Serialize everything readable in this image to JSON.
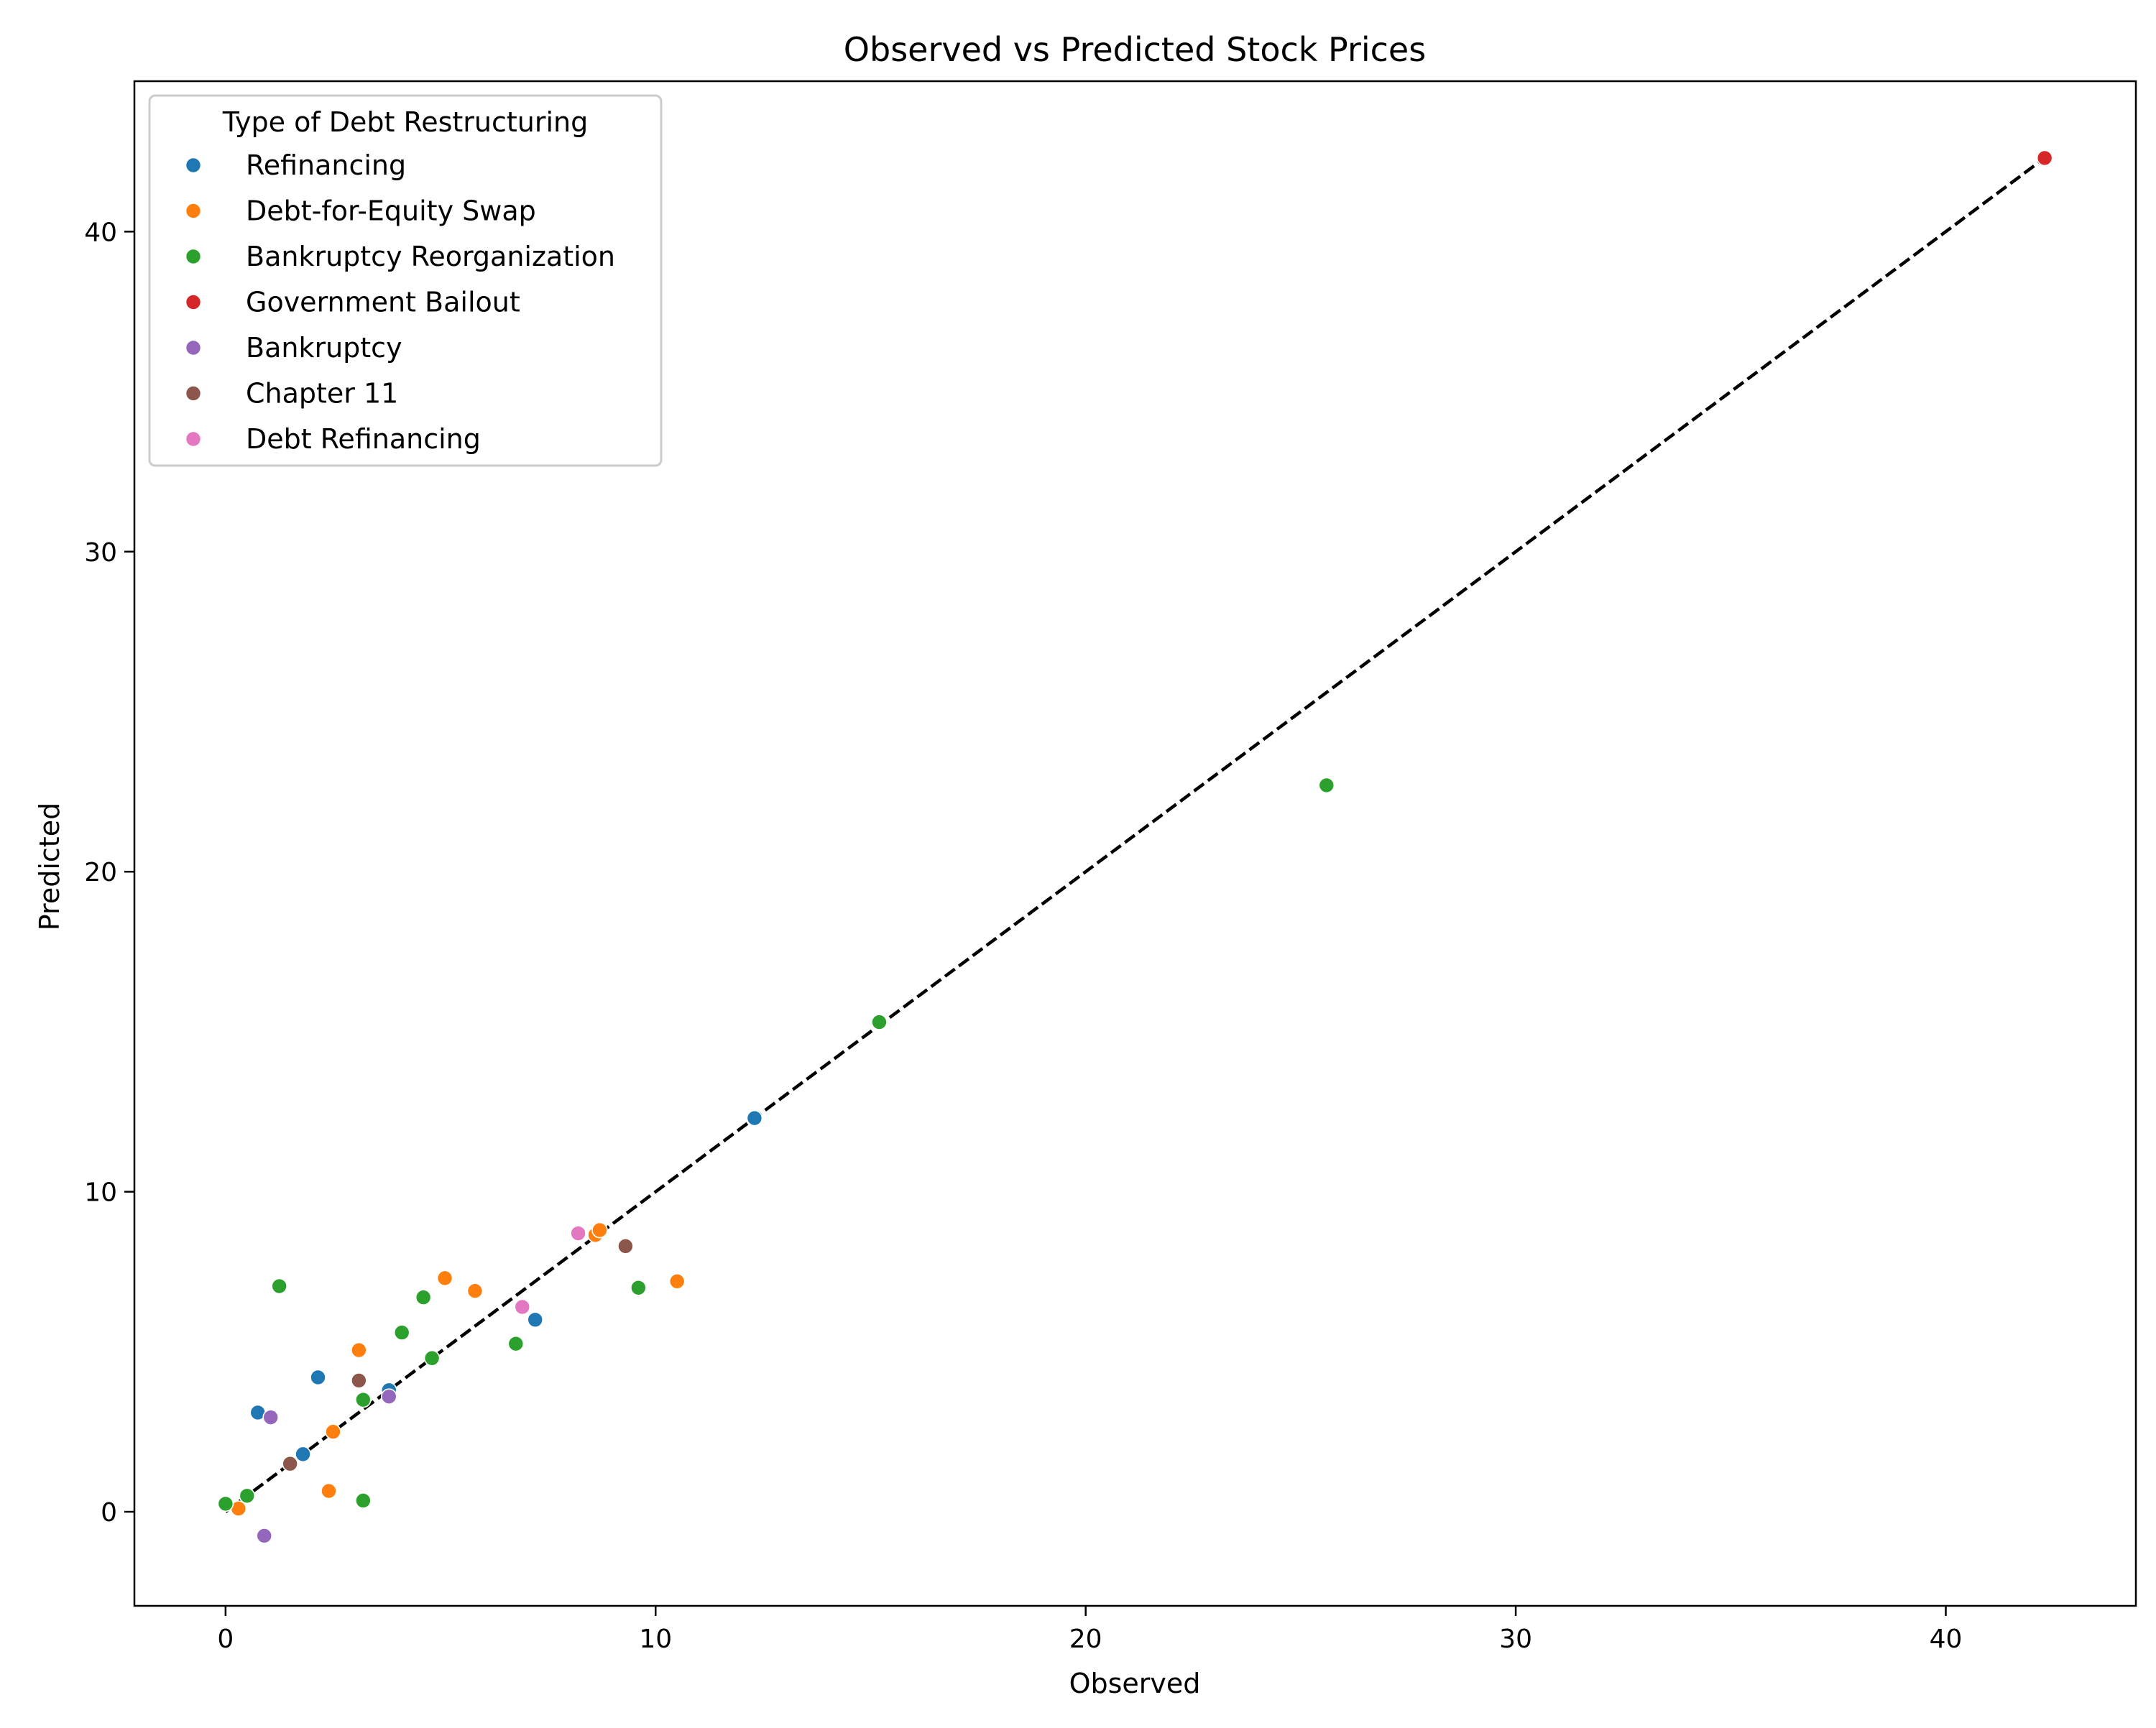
{
  "chart_data": {
    "type": "scatter",
    "title": "Observed vs Predicted Stock Prices",
    "xlabel": "Observed",
    "ylabel": "Predicted",
    "xlim": [
      -2.12,
      44.42
    ],
    "ylim": [
      -2.94,
      44.7
    ],
    "xticks": [
      0,
      10,
      20,
      30,
      40
    ],
    "yticks": [
      0,
      10,
      20,
      30,
      40
    ],
    "grid": false,
    "legend": {
      "title": "Type of Debt Restructuring",
      "placement": "top-left"
    },
    "reference_line": {
      "style": "dashed",
      "color": "#000000",
      "from": [
        0,
        0
      ],
      "to": [
        42.3,
        42.3
      ]
    },
    "series": [
      {
        "name": "Refinancing",
        "color": "#1f77b4",
        "points": [
          [
            0.75,
            3.1
          ],
          [
            1.8,
            1.8
          ],
          [
            2.15,
            4.2
          ],
          [
            3.8,
            3.8
          ],
          [
            7.2,
            6.0
          ],
          [
            12.3,
            12.3
          ]
        ]
      },
      {
        "name": "Debt-for-Equity Swap",
        "color": "#ff7f0e",
        "points": [
          [
            0.3,
            0.1
          ],
          [
            2.4,
            0.65
          ],
          [
            2.5,
            2.5
          ],
          [
            3.1,
            5.05
          ],
          [
            5.1,
            7.3
          ],
          [
            5.8,
            6.9
          ],
          [
            8.6,
            8.65
          ],
          [
            8.7,
            8.8
          ],
          [
            10.5,
            7.2
          ]
        ]
      },
      {
        "name": "Bankruptcy Reorganization",
        "color": "#2ca02c",
        "points": [
          [
            0.0,
            0.25
          ],
          [
            0.5,
            0.5
          ],
          [
            1.25,
            7.05
          ],
          [
            3.2,
            0.35
          ],
          [
            3.2,
            3.5
          ],
          [
            4.1,
            5.6
          ],
          [
            4.6,
            6.7
          ],
          [
            4.8,
            4.8
          ],
          [
            6.75,
            5.25
          ],
          [
            9.6,
            7.0
          ],
          [
            15.2,
            15.3
          ],
          [
            25.6,
            22.7
          ]
        ]
      },
      {
        "name": "Government Bailout",
        "color": "#d62728",
        "points": [
          [
            42.3,
            42.3
          ]
        ]
      },
      {
        "name": "Bankruptcy",
        "color": "#9467bd",
        "points": [
          [
            0.9,
            -0.75
          ],
          [
            1.05,
            2.95
          ],
          [
            3.8,
            3.6
          ]
        ]
      },
      {
        "name": "Chapter 11",
        "color": "#8c564b",
        "points": [
          [
            1.5,
            1.5
          ],
          [
            3.1,
            4.1
          ],
          [
            9.3,
            8.3
          ]
        ]
      },
      {
        "name": "Debt Refinancing",
        "color": "#e377c2",
        "points": [
          [
            6.9,
            6.4
          ],
          [
            8.2,
            8.7
          ]
        ]
      }
    ]
  }
}
